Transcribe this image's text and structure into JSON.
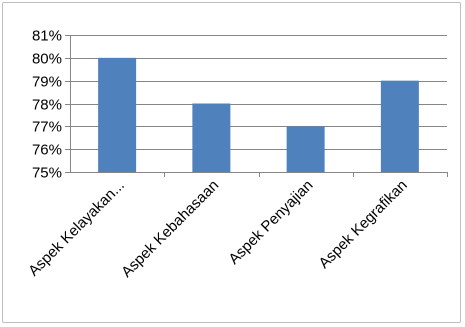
{
  "chart_data": {
    "type": "bar",
    "title": "",
    "xlabel": "",
    "ylabel": "",
    "categories": [
      "Aspek Kelayakan...",
      "Aspek Kebahasaan",
      "Aspek Penyajian",
      "Aspek Kegrafikan"
    ],
    "values": [
      80,
      78,
      77,
      79
    ],
    "ylim": [
      75,
      81
    ],
    "yticks": [
      "75%",
      "76%",
      "77%",
      "78%",
      "79%",
      "80%",
      "81%"
    ],
    "grid": true,
    "legend": "none",
    "bar_color": "#4f81bd",
    "grid_color": "#868686"
  }
}
